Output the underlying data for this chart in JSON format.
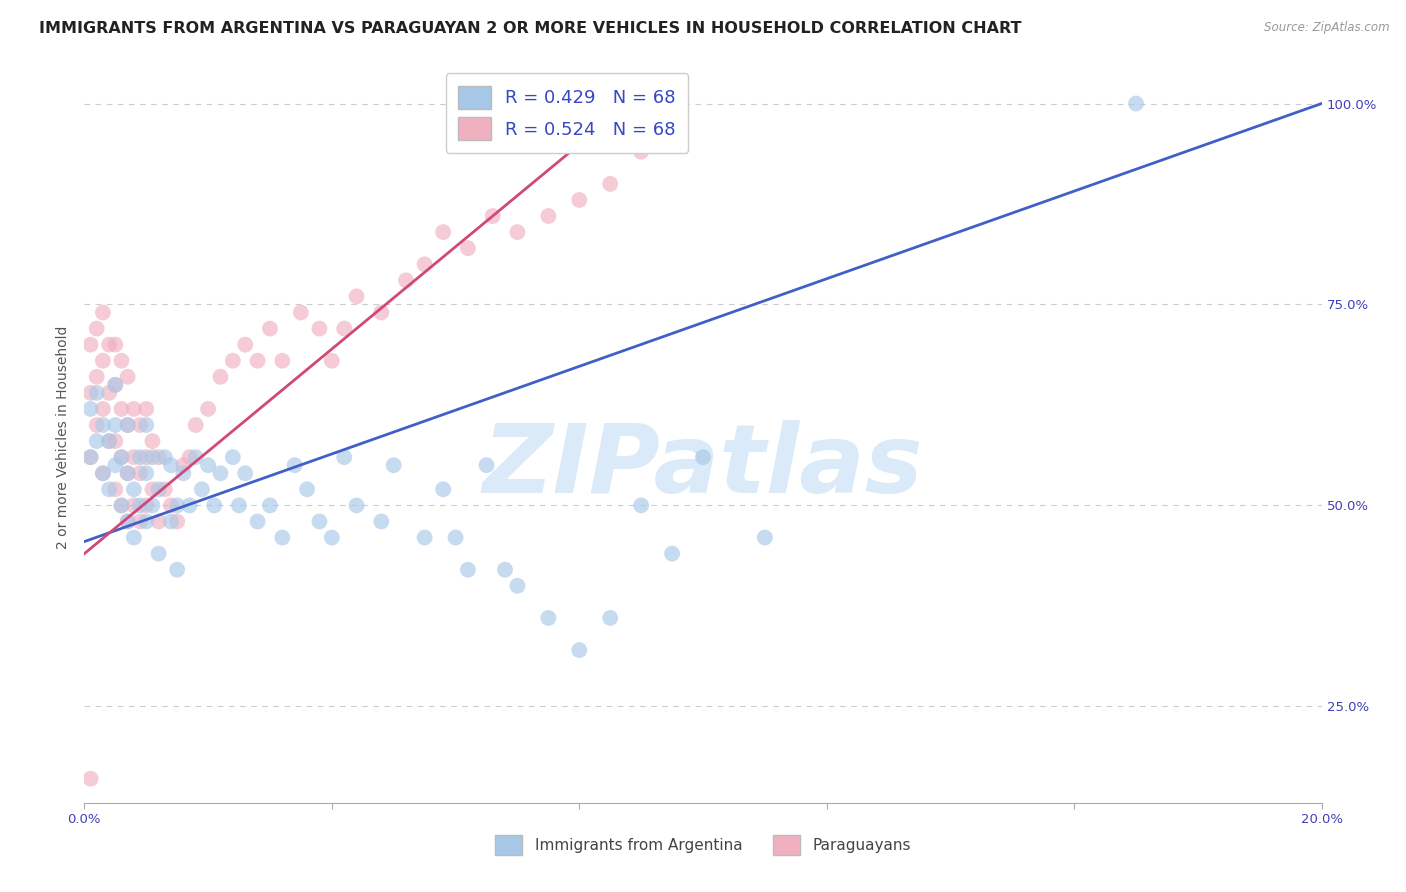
{
  "title": "IMMIGRANTS FROM ARGENTINA VS PARAGUAYAN 2 OR MORE VEHICLES IN HOUSEHOLD CORRELATION CHART",
  "source_text": "Source: ZipAtlas.com",
  "ylabel": "2 or more Vehicles in Household",
  "x_min": 0.0,
  "x_max": 0.2,
  "y_min": 0.13,
  "y_max": 1.04,
  "x_tick_positions": [
    0.0,
    0.04,
    0.08,
    0.12,
    0.16,
    0.2
  ],
  "x_tick_labels": [
    "0.0%",
    "",
    "",
    "",
    "",
    "20.0%"
  ],
  "y_ticks_right": [
    0.25,
    0.5,
    0.75,
    1.0
  ],
  "y_tick_labels_right": [
    "25.0%",
    "50.0%",
    "75.0%",
    "100.0%"
  ],
  "grid_color": "#cccccc",
  "background_color": "#ffffff",
  "legend_r1": "R = 0.429",
  "legend_n1": "N = 68",
  "legend_r2": "R = 0.524",
  "legend_n2": "N = 68",
  "legend_color1": "#a8c8e8",
  "legend_color2": "#f0b0c0",
  "scatter_color1": "#a8c8e8",
  "scatter_color2": "#f0b0c0",
  "line_color1": "#4060c8",
  "line_color2": "#d04878",
  "r_text_color": "#3848c0",
  "watermark_color": "#daeaf8",
  "blue_scatter_x": [
    0.001,
    0.001,
    0.002,
    0.002,
    0.003,
    0.003,
    0.004,
    0.004,
    0.005,
    0.005,
    0.005,
    0.006,
    0.006,
    0.007,
    0.007,
    0.007,
    0.008,
    0.008,
    0.009,
    0.009,
    0.01,
    0.01,
    0.01,
    0.011,
    0.011,
    0.012,
    0.012,
    0.013,
    0.014,
    0.014,
    0.015,
    0.015,
    0.016,
    0.017,
    0.018,
    0.019,
    0.02,
    0.021,
    0.022,
    0.024,
    0.025,
    0.026,
    0.028,
    0.03,
    0.032,
    0.034,
    0.036,
    0.038,
    0.04,
    0.042,
    0.044,
    0.048,
    0.05,
    0.055,
    0.058,
    0.06,
    0.062,
    0.065,
    0.068,
    0.07,
    0.075,
    0.08,
    0.085,
    0.09,
    0.095,
    0.1,
    0.11,
    0.17
  ],
  "blue_scatter_y": [
    0.56,
    0.62,
    0.58,
    0.64,
    0.54,
    0.6,
    0.52,
    0.58,
    0.55,
    0.6,
    0.65,
    0.5,
    0.56,
    0.48,
    0.54,
    0.6,
    0.46,
    0.52,
    0.5,
    0.56,
    0.48,
    0.54,
    0.6,
    0.5,
    0.56,
    0.44,
    0.52,
    0.56,
    0.48,
    0.55,
    0.42,
    0.5,
    0.54,
    0.5,
    0.56,
    0.52,
    0.55,
    0.5,
    0.54,
    0.56,
    0.5,
    0.54,
    0.48,
    0.5,
    0.46,
    0.55,
    0.52,
    0.48,
    0.46,
    0.56,
    0.5,
    0.48,
    0.55,
    0.46,
    0.52,
    0.46,
    0.42,
    0.55,
    0.42,
    0.4,
    0.36,
    0.32,
    0.36,
    0.5,
    0.44,
    0.56,
    0.46,
    1.0
  ],
  "pink_scatter_x": [
    0.001,
    0.001,
    0.001,
    0.002,
    0.002,
    0.002,
    0.003,
    0.003,
    0.003,
    0.003,
    0.004,
    0.004,
    0.004,
    0.005,
    0.005,
    0.005,
    0.005,
    0.006,
    0.006,
    0.006,
    0.006,
    0.007,
    0.007,
    0.007,
    0.007,
    0.008,
    0.008,
    0.008,
    0.009,
    0.009,
    0.009,
    0.01,
    0.01,
    0.01,
    0.011,
    0.011,
    0.012,
    0.012,
    0.013,
    0.014,
    0.015,
    0.016,
    0.017,
    0.018,
    0.02,
    0.022,
    0.024,
    0.026,
    0.028,
    0.03,
    0.032,
    0.035,
    0.038,
    0.04,
    0.042,
    0.044,
    0.048,
    0.052,
    0.055,
    0.058,
    0.062,
    0.066,
    0.07,
    0.075,
    0.08,
    0.085,
    0.09,
    0.001
  ],
  "pink_scatter_y": [
    0.56,
    0.64,
    0.7,
    0.6,
    0.66,
    0.72,
    0.54,
    0.62,
    0.68,
    0.74,
    0.58,
    0.64,
    0.7,
    0.52,
    0.58,
    0.65,
    0.7,
    0.5,
    0.56,
    0.62,
    0.68,
    0.48,
    0.54,
    0.6,
    0.66,
    0.5,
    0.56,
    0.62,
    0.48,
    0.54,
    0.6,
    0.5,
    0.56,
    0.62,
    0.52,
    0.58,
    0.48,
    0.56,
    0.52,
    0.5,
    0.48,
    0.55,
    0.56,
    0.6,
    0.62,
    0.66,
    0.68,
    0.7,
    0.68,
    0.72,
    0.68,
    0.74,
    0.72,
    0.68,
    0.72,
    0.76,
    0.74,
    0.78,
    0.8,
    0.84,
    0.82,
    0.86,
    0.84,
    0.86,
    0.88,
    0.9,
    0.94,
    0.16
  ],
  "blue_line_x": [
    0.0,
    0.2
  ],
  "blue_line_y": [
    0.455,
    1.0
  ],
  "pink_line_x": [
    0.0,
    0.088
  ],
  "pink_line_y": [
    0.44,
    1.0
  ],
  "title_fontsize": 11.5,
  "axis_label_fontsize": 10,
  "tick_fontsize": 9.5,
  "legend_fontsize": 13,
  "scatter_size": 130,
  "scatter_alpha": 0.65,
  "line_width": 2.0
}
